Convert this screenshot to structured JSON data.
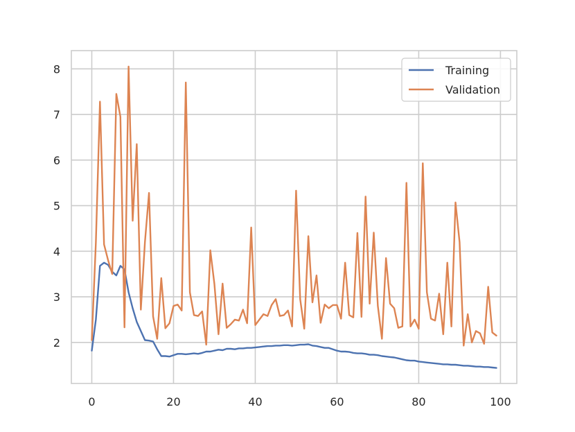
{
  "chart_data": {
    "type": "line",
    "title": "",
    "xlabel": "",
    "ylabel": "",
    "xlim": [
      -5,
      104
    ],
    "ylim": [
      1.1,
      8.4
    ],
    "x_ticks": [
      0,
      20,
      40,
      60,
      80,
      100
    ],
    "y_ticks": [
      2,
      3,
      4,
      5,
      6,
      7,
      8
    ],
    "grid": true,
    "legend_position": "top-right",
    "series": [
      {
        "name": "Training",
        "color": "#4c72b0",
        "x": [
          0,
          1,
          2,
          3,
          4,
          5,
          6,
          7,
          8,
          9,
          10,
          11,
          12,
          13,
          14,
          15,
          16,
          17,
          18,
          19,
          20,
          21,
          22,
          23,
          24,
          25,
          26,
          27,
          28,
          29,
          30,
          31,
          32,
          33,
          34,
          35,
          36,
          37,
          38,
          39,
          40,
          41,
          42,
          43,
          44,
          45,
          46,
          47,
          48,
          49,
          50,
          51,
          52,
          53,
          54,
          55,
          56,
          57,
          58,
          59,
          60,
          61,
          62,
          63,
          64,
          65,
          66,
          67,
          68,
          69,
          70,
          71,
          72,
          73,
          74,
          75,
          76,
          77,
          78,
          79,
          80,
          81,
          82,
          83,
          84,
          85,
          86,
          87,
          88,
          89,
          90,
          91,
          92,
          93,
          94,
          95,
          96,
          97,
          98,
          99
        ],
        "values": [
          1.82,
          2.5,
          3.68,
          3.75,
          3.7,
          3.55,
          3.47,
          3.68,
          3.6,
          3.1,
          2.75,
          2.45,
          2.25,
          2.05,
          2.04,
          2.02,
          1.85,
          1.7,
          1.7,
          1.69,
          1.72,
          1.75,
          1.75,
          1.74,
          1.75,
          1.76,
          1.75,
          1.77,
          1.8,
          1.8,
          1.82,
          1.84,
          1.83,
          1.86,
          1.86,
          1.85,
          1.87,
          1.87,
          1.88,
          1.88,
          1.89,
          1.9,
          1.91,
          1.92,
          1.92,
          1.93,
          1.93,
          1.94,
          1.94,
          1.93,
          1.94,
          1.95,
          1.95,
          1.96,
          1.93,
          1.92,
          1.9,
          1.88,
          1.88,
          1.85,
          1.82,
          1.8,
          1.8,
          1.79,
          1.77,
          1.76,
          1.76,
          1.75,
          1.73,
          1.73,
          1.72,
          1.7,
          1.69,
          1.68,
          1.67,
          1.65,
          1.63,
          1.61,
          1.6,
          1.6,
          1.58,
          1.57,
          1.56,
          1.55,
          1.54,
          1.53,
          1.52,
          1.52,
          1.51,
          1.51,
          1.5,
          1.49,
          1.49,
          1.48,
          1.47,
          1.47,
          1.46,
          1.46,
          1.45,
          1.44
        ]
      },
      {
        "name": "Validation",
        "color": "#dd8452",
        "x": [
          0,
          1,
          2,
          3,
          4,
          5,
          6,
          7,
          8,
          9,
          10,
          11,
          12,
          13,
          14,
          15,
          16,
          17,
          18,
          19,
          20,
          21,
          22,
          23,
          24,
          25,
          26,
          27,
          28,
          29,
          30,
          31,
          32,
          33,
          34,
          35,
          36,
          37,
          38,
          39,
          40,
          41,
          42,
          43,
          44,
          45,
          46,
          47,
          48,
          49,
          50,
          51,
          52,
          53,
          54,
          55,
          56,
          57,
          58,
          59,
          60,
          61,
          62,
          63,
          64,
          65,
          66,
          67,
          68,
          69,
          70,
          71,
          72,
          73,
          74,
          75,
          76,
          77,
          78,
          79,
          80,
          81,
          82,
          83,
          84,
          85,
          86,
          87,
          88,
          89,
          90,
          91,
          92,
          93,
          94,
          95,
          96,
          97,
          98,
          99
        ],
        "values": [
          2.05,
          4.2,
          7.28,
          4.15,
          3.8,
          3.5,
          7.45,
          6.95,
          2.33,
          8.05,
          4.67,
          6.35,
          2.72,
          4.2,
          5.28,
          2.57,
          2.08,
          3.41,
          2.31,
          2.42,
          2.8,
          2.83,
          2.7,
          7.7,
          3.1,
          2.6,
          2.58,
          2.68,
          1.95,
          4.02,
          3.28,
          2.18,
          3.29,
          2.32,
          2.4,
          2.5,
          2.48,
          2.72,
          2.42,
          4.52,
          2.38,
          2.5,
          2.62,
          2.58,
          2.82,
          2.95,
          2.58,
          2.6,
          2.7,
          2.35,
          5.33,
          2.95,
          2.3,
          4.33,
          2.88,
          3.47,
          2.43,
          2.83,
          2.75,
          2.82,
          2.82,
          2.52,
          3.75,
          2.6,
          2.55,
          4.4,
          2.56,
          5.2,
          2.85,
          4.41,
          2.8,
          2.08,
          3.85,
          2.85,
          2.75,
          2.32,
          2.35,
          5.5,
          2.35,
          2.5,
          2.3,
          5.93,
          3.1,
          2.52,
          2.48,
          3.07,
          2.18,
          3.75,
          2.35,
          5.07,
          4.2,
          1.93,
          2.62,
          2.0,
          2.25,
          2.2,
          1.97,
          3.22,
          2.22,
          2.15
        ]
      }
    ]
  }
}
